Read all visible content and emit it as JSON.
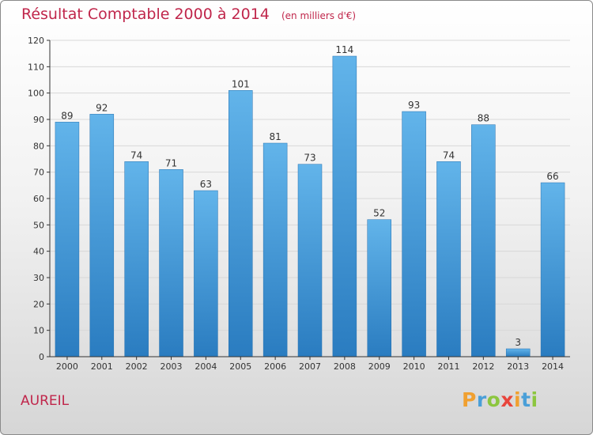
{
  "header": {
    "title": "Résultat Comptable 2000 à 2014",
    "unit": "(en milliers d'€)"
  },
  "commune": "AUREIL",
  "logo": {
    "letters": [
      "P",
      "r",
      "o",
      "x",
      "i",
      "t",
      "i"
    ],
    "colors": [
      "#f0a030",
      "#4a9fd8",
      "#8cc63f",
      "#e8453c",
      "#f0a030",
      "#4a9fd8",
      "#8cc63f"
    ]
  },
  "colors": {
    "title": "#c0264b",
    "bar_top": "#62b4ea",
    "bar_bottom": "#2a7cc0",
    "bar_edge": "#2470b0",
    "grid": "#d8d8d8",
    "axis": "#333333"
  },
  "chart_data": {
    "type": "bar",
    "title": "Résultat Comptable 2000 à 2014",
    "xlabel": "",
    "ylabel": "",
    "ylim": [
      0,
      120
    ],
    "yticks": [
      0,
      10,
      20,
      30,
      40,
      50,
      60,
      70,
      80,
      90,
      100,
      110,
      120
    ],
    "grid": true,
    "categories": [
      "2000",
      "2001",
      "2002",
      "2003",
      "2004",
      "2005",
      "2006",
      "2007",
      "2008",
      "2009",
      "2010",
      "2011",
      "2012",
      "2013",
      "2014"
    ],
    "values": [
      89,
      92,
      74,
      71,
      63,
      101,
      81,
      73,
      114,
      52,
      93,
      74,
      88,
      3,
      66
    ]
  }
}
